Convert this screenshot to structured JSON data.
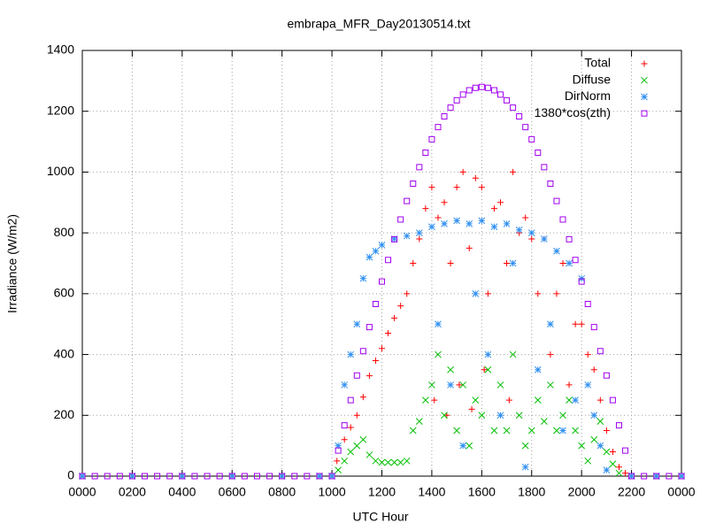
{
  "chart_data": {
    "type": "scatter",
    "title": "embrapa_MFR_Day20130514.txt",
    "xlabel": "UTC Hour",
    "ylabel": "Irradiance (W/m2)",
    "xlim": [
      0,
      24
    ],
    "ylim": [
      0,
      1400
    ],
    "xticks": [
      {
        "value": 0,
        "label": "0000"
      },
      {
        "value": 2,
        "label": "0200"
      },
      {
        "value": 4,
        "label": "0400"
      },
      {
        "value": 6,
        "label": "0600"
      },
      {
        "value": 8,
        "label": "0800"
      },
      {
        "value": 10,
        "label": "1000"
      },
      {
        "value": 12,
        "label": "1200"
      },
      {
        "value": 14,
        "label": "1400"
      },
      {
        "value": 16,
        "label": "1600"
      },
      {
        "value": 18,
        "label": "1800"
      },
      {
        "value": 20,
        "label": "2000"
      },
      {
        "value": 22,
        "label": "2200"
      },
      {
        "value": 24,
        "label": "0000"
      }
    ],
    "yticks": [
      0,
      200,
      400,
      600,
      800,
      1000,
      1200,
      1400
    ],
    "grid": true,
    "legend": "top-right",
    "series": [
      {
        "name": "Total",
        "color": "#ff0000",
        "marker": "plus",
        "x": [
          0,
          2,
          4,
          6,
          8,
          9.5,
          10,
          10.2,
          10.5,
          10.75,
          11,
          11.25,
          11.5,
          11.75,
          12,
          12.25,
          12.5,
          12.75,
          13,
          13.25,
          13.5,
          13.75,
          14,
          14.1,
          14.25,
          14.5,
          14.6,
          14.75,
          15,
          15.1,
          15.25,
          15.5,
          15.6,
          15.75,
          16,
          16.1,
          16.25,
          16.5,
          16.75,
          17,
          17.1,
          17.25,
          17.5,
          17.75,
          18,
          18.25,
          18.5,
          18.75,
          19,
          19.25,
          19.5,
          19.75,
          20,
          20.25,
          20.5,
          20.75,
          21,
          21.25,
          21.5,
          21.75,
          22,
          23,
          24
        ],
        "values": [
          0,
          0,
          0,
          0,
          0,
          0,
          0,
          50,
          120,
          160,
          200,
          260,
          330,
          380,
          420,
          470,
          520,
          560,
          600,
          700,
          780,
          880,
          950,
          250,
          850,
          900,
          200,
          700,
          950,
          300,
          1000,
          750,
          220,
          980,
          950,
          350,
          600,
          880,
          900,
          700,
          250,
          1000,
          800,
          850,
          780,
          600,
          780,
          400,
          600,
          700,
          300,
          500,
          500,
          400,
          350,
          250,
          150,
          80,
          30,
          10,
          0,
          0,
          0
        ]
      },
      {
        "name": "Diffuse",
        "color": "#00c000",
        "marker": "cross",
        "x": [
          0,
          2,
          4,
          6,
          8,
          9.5,
          10,
          10.25,
          10.5,
          10.75,
          11,
          11.25,
          11.5,
          11.75,
          12,
          12.25,
          12.5,
          12.75,
          13,
          13.25,
          13.5,
          13.75,
          14,
          14.25,
          14.5,
          14.75,
          15,
          15.25,
          15.5,
          15.75,
          16,
          16.25,
          16.5,
          16.75,
          17,
          17.25,
          17.5,
          17.75,
          18,
          18.25,
          18.5,
          18.75,
          19,
          19.25,
          19.5,
          19.75,
          20,
          20.25,
          20.5,
          20.75,
          21,
          21.25,
          21.5,
          22,
          23,
          24
        ],
        "values": [
          0,
          0,
          0,
          0,
          0,
          0,
          0,
          20,
          50,
          80,
          100,
          120,
          70,
          50,
          45,
          45,
          45,
          45,
          50,
          150,
          180,
          250,
          300,
          400,
          200,
          350,
          150,
          300,
          100,
          250,
          200,
          350,
          150,
          300,
          150,
          400,
          200,
          100,
          150,
          250,
          180,
          300,
          150,
          200,
          250,
          150,
          100,
          50,
          120,
          180,
          80,
          40,
          10,
          0,
          0,
          0
        ]
      },
      {
        "name": "DirNorm",
        "color": "#3090f0",
        "marker": "star",
        "x": [
          0,
          2,
          4,
          6,
          8,
          9.5,
          10,
          10.25,
          10.5,
          10.75,
          11,
          11.25,
          11.5,
          11.75,
          12,
          12.5,
          13,
          13.5,
          14,
          14.25,
          14.5,
          14.75,
          15,
          15.25,
          15.5,
          15.75,
          16,
          16.25,
          16.5,
          16.75,
          17,
          17.25,
          17.5,
          17.75,
          18,
          18.25,
          18.5,
          18.75,
          19,
          19.25,
          19.5,
          19.75,
          20,
          20.25,
          20.5,
          20.75,
          21,
          22,
          23,
          24
        ],
        "values": [
          0,
          0,
          0,
          0,
          0,
          0,
          0,
          100,
          300,
          400,
          500,
          650,
          720,
          740,
          760,
          780,
          790,
          800,
          820,
          500,
          830,
          300,
          840,
          100,
          830,
          600,
          840,
          400,
          820,
          200,
          830,
          700,
          810,
          30,
          800,
          350,
          780,
          500,
          740,
          150,
          700,
          250,
          650,
          300,
          200,
          100,
          20,
          0,
          0,
          0
        ]
      },
      {
        "name": "1380*cos(zth)",
        "color": "#a000f0",
        "marker": "square",
        "x": [
          0,
          0.5,
          1,
          1.5,
          2,
          2.5,
          3,
          3.5,
          4,
          4.5,
          5,
          5.5,
          6,
          6.5,
          7,
          7.5,
          8,
          8.5,
          9,
          9.5,
          10,
          10.25,
          10.5,
          10.75,
          11,
          11.25,
          11.5,
          11.75,
          12,
          12.25,
          12.5,
          12.75,
          13,
          13.25,
          13.5,
          13.75,
          14,
          14.25,
          14.5,
          14.75,
          15,
          15.25,
          15.5,
          15.75,
          16,
          16.25,
          16.5,
          16.75,
          17,
          17.25,
          17.5,
          17.75,
          18,
          18.25,
          18.5,
          18.75,
          19,
          19.25,
          19.5,
          19.75,
          20,
          20.25,
          20.5,
          20.75,
          21,
          21.25,
          21.5,
          21.75,
          22,
          22.5,
          23,
          23.5,
          24
        ],
        "values": [
          0,
          0,
          0,
          0,
          0,
          0,
          0,
          0,
          0,
          0,
          0,
          0,
          0,
          0,
          0,
          0,
          0,
          0,
          0,
          0,
          0,
          84,
          167,
          250,
          331,
          411,
          490,
          566,
          640,
          711,
          779,
          844,
          905,
          962,
          1016,
          1064,
          1108,
          1148,
          1183,
          1212,
          1236,
          1255,
          1269,
          1277,
          1280,
          1277,
          1269,
          1255,
          1236,
          1212,
          1183,
          1148,
          1108,
          1064,
          1016,
          962,
          905,
          844,
          779,
          711,
          640,
          566,
          490,
          411,
          331,
          250,
          167,
          84,
          0,
          0,
          0,
          0,
          0
        ]
      }
    ]
  }
}
